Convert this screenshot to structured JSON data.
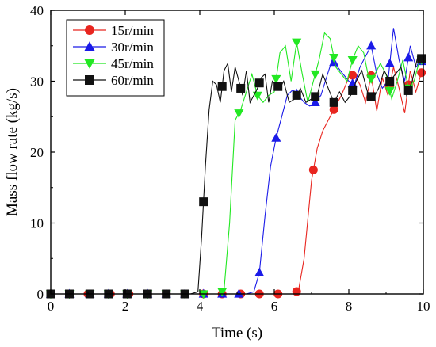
{
  "chart_data": {
    "type": "line",
    "xlabel": "Time (s)",
    "ylabel": "Mass flow rate (kg/s)",
    "xlim": [
      0,
      10
    ],
    "ylim": [
      0,
      40
    ],
    "xticks": [
      0,
      2,
      4,
      6,
      8,
      10
    ],
    "yticks": [
      0,
      10,
      20,
      30,
      40
    ],
    "grid": false,
    "legend_position": "top-left",
    "series": [
      {
        "name": "15r/min",
        "color": "#e8251f",
        "marker": "circle",
        "x": [
          0,
          0.25,
          0.5,
          0.75,
          1.0,
          1.25,
          1.5,
          1.75,
          2.0,
          2.25,
          2.5,
          2.75,
          3.0,
          3.25,
          3.5,
          3.75,
          4.0,
          4.25,
          4.5,
          4.75,
          5.0,
          5.25,
          5.5,
          5.75,
          6.0,
          6.25,
          6.5,
          6.65,
          6.8,
          7.0,
          7.15,
          7.3,
          7.45,
          7.6,
          7.8,
          8.0,
          8.15,
          8.3,
          8.45,
          8.6,
          8.75,
          8.9,
          9.05,
          9.2,
          9.35,
          9.5,
          9.65,
          9.8,
          9.95
        ],
        "y": [
          0,
          0,
          0,
          0,
          0,
          0,
          0,
          0,
          0,
          0,
          0,
          0,
          0,
          0,
          0,
          0,
          0,
          0,
          0,
          0,
          0,
          0,
          0,
          0,
          0,
          0,
          0,
          0.5,
          5,
          16,
          20.5,
          23,
          24.5,
          26,
          28,
          30.5,
          31,
          29.5,
          27,
          30.8,
          25.8,
          30.5,
          28,
          32,
          29,
          25.5,
          31.5,
          28.5,
          31.2
        ],
        "marked": [
          0,
          0.5,
          1.0,
          1.6,
          2.1,
          2.6,
          3.1,
          3.6,
          4.1,
          4.6,
          5.1,
          5.6,
          6.1,
          6.6,
          7.05,
          7.6,
          8.1,
          8.6,
          9.1,
          9.6,
          9.95
        ]
      },
      {
        "name": "30r/min",
        "color": "#1a1ae8",
        "marker": "triangle-up",
        "x": [
          0,
          0.25,
          0.5,
          0.75,
          1.0,
          1.25,
          1.5,
          1.75,
          2.0,
          2.25,
          2.5,
          2.75,
          3.0,
          3.25,
          3.5,
          3.75,
          4.0,
          4.25,
          4.5,
          4.75,
          5.0,
          5.25,
          5.45,
          5.6,
          5.75,
          5.9,
          6.05,
          6.2,
          6.35,
          6.5,
          6.65,
          6.8,
          6.95,
          7.1,
          7.25,
          7.4,
          7.55,
          7.7,
          7.85,
          8.0,
          8.15,
          8.3,
          8.45,
          8.6,
          8.75,
          8.9,
          9.05,
          9.2,
          9.35,
          9.5,
          9.65,
          9.8,
          9.95
        ],
        "y": [
          0,
          0,
          0,
          0,
          0,
          0,
          0,
          0,
          0,
          0,
          0,
          0,
          0,
          0,
          0,
          0,
          0,
          0,
          0,
          0,
          0,
          0,
          0.3,
          3,
          11,
          18,
          22,
          25,
          28,
          28.8,
          28,
          27,
          26.5,
          27,
          28,
          30.5,
          33,
          32,
          31,
          30,
          29.5,
          32,
          33.5,
          35,
          31,
          29,
          30,
          37.5,
          33,
          30,
          35,
          32,
          32.8
        ],
        "marked": [
          0,
          0.5,
          1.05,
          1.55,
          2.05,
          2.6,
          3.1,
          3.6,
          4.1,
          4.6,
          5.05,
          5.6,
          6.05,
          6.6,
          7.1,
          7.6,
          8.1,
          8.6,
          9.1,
          9.6,
          9.95
        ]
      },
      {
        "name": "45r/min",
        "color": "#22e822",
        "marker": "triangle-down",
        "x": [
          0,
          0.25,
          0.5,
          0.75,
          1.0,
          1.25,
          1.5,
          1.75,
          2.0,
          2.25,
          2.5,
          2.75,
          3.0,
          3.25,
          3.5,
          3.75,
          4.0,
          4.25,
          4.5,
          4.65,
          4.8,
          4.95,
          5.1,
          5.25,
          5.4,
          5.55,
          5.7,
          5.85,
          6.0,
          6.15,
          6.3,
          6.45,
          6.6,
          6.75,
          6.9,
          7.05,
          7.2,
          7.35,
          7.5,
          7.65,
          7.8,
          7.95,
          8.1,
          8.25,
          8.4,
          8.55,
          8.7,
          8.85,
          9.0,
          9.15,
          9.3,
          9.45,
          9.6,
          9.75,
          9.9
        ],
        "y": [
          0,
          0,
          0,
          0,
          0,
          0,
          0,
          0,
          0,
          0,
          0,
          0,
          0,
          0,
          0,
          0,
          0,
          0,
          0,
          0.5,
          10,
          24.5,
          26,
          28.5,
          31,
          28,
          27,
          28,
          28.5,
          34,
          35,
          30,
          35.5,
          31,
          27,
          30,
          33,
          36.8,
          36,
          32,
          31,
          30,
          33,
          35,
          34,
          30,
          31,
          32.5,
          31,
          27.5,
          30,
          33,
          29,
          30,
          33
        ],
        "marked": [
          0,
          0.5,
          1.05,
          1.55,
          2.05,
          2.6,
          3.1,
          3.6,
          4.1,
          4.6,
          5.05,
          5.55,
          6.05,
          6.6,
          7.1,
          7.6,
          8.1,
          8.6,
          9.1,
          9.6,
          9.95
        ]
      },
      {
        "name": "60r/min",
        "color": "#111111",
        "marker": "square",
        "x": [
          0,
          0.25,
          0.5,
          0.75,
          1.0,
          1.25,
          1.5,
          1.75,
          2.0,
          2.25,
          2.5,
          2.75,
          3.0,
          3.25,
          3.5,
          3.75,
          3.95,
          4.05,
          4.15,
          4.25,
          4.35,
          4.45,
          4.55,
          4.65,
          4.75,
          4.85,
          4.95,
          5.05,
          5.15,
          5.25,
          5.35,
          5.45,
          5.55,
          5.65,
          5.75,
          5.85,
          5.95,
          6.05,
          6.15,
          6.25,
          6.4,
          6.55,
          6.7,
          6.85,
          7.0,
          7.15,
          7.3,
          7.45,
          7.6,
          7.75,
          7.9,
          8.05,
          8.2,
          8.35,
          8.5,
          8.65,
          8.8,
          8.95,
          9.1,
          9.25,
          9.4,
          9.55,
          9.7,
          9.85,
          9.95
        ],
        "y": [
          0,
          0,
          0,
          0,
          0,
          0,
          0,
          0,
          0,
          0,
          0,
          0,
          0,
          0,
          0,
          0,
          0.3,
          8,
          18,
          26,
          30,
          29.5,
          27,
          31.5,
          32.5,
          28.5,
          32,
          30,
          28,
          31.5,
          27,
          28,
          29,
          30.5,
          31,
          27,
          30,
          29.5,
          29,
          30,
          27,
          27.5,
          29,
          27,
          27.5,
          28,
          31,
          29,
          27,
          28.5,
          27,
          28,
          30,
          31.5,
          28.5,
          27.5,
          29,
          31.5,
          30,
          31,
          32,
          28,
          30,
          33.5,
          33.2
        ],
        "marked": [
          0,
          0.5,
          1.05,
          1.55,
          2.05,
          2.6,
          3.1,
          3.6,
          4.1,
          4.6,
          5.1,
          5.6,
          6.1,
          6.6,
          7.1,
          7.6,
          8.1,
          8.6,
          9.1,
          9.6,
          9.95
        ]
      }
    ]
  }
}
